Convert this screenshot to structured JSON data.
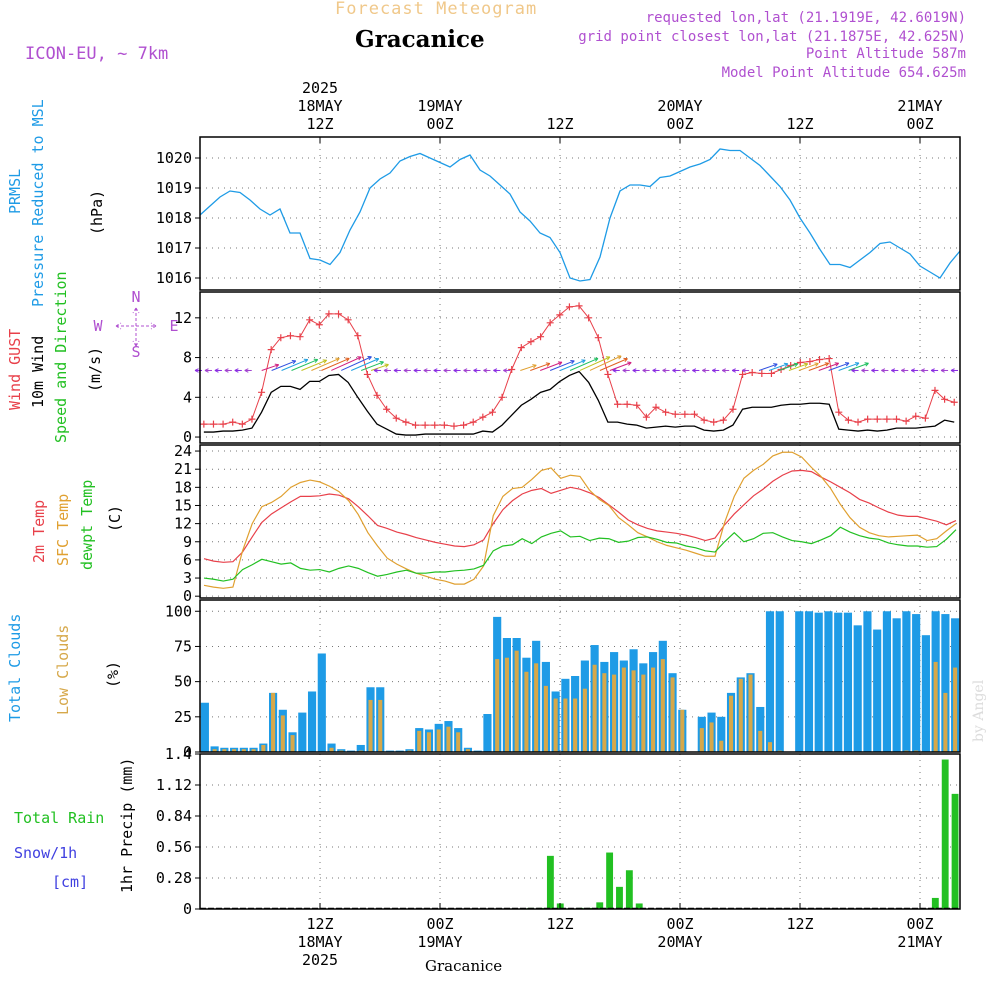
{
  "header": {
    "forecast_title": "Forecast Meteogram",
    "location": "Gracanice",
    "model": "ICON-EU, ~ 7km",
    "requested": "requested lon,lat (21.1919E, 42.6019N)",
    "gridpoint": "grid point closest lon,lat (21.1875E, 42.625N)",
    "point_alt": "Point Altitude 587m",
    "model_alt": "Model Point Altitude 654.625m",
    "footer_location": "Gracanice",
    "watermark": "by Angel"
  },
  "colors": {
    "pressure": "#1e9be6",
    "gust": "#e8404a",
    "wind": "#000000",
    "temp": "#e8404a",
    "sfc_temp": "#e0a030",
    "dewpt": "#22c022",
    "total_clouds": "#1e9be6",
    "low_clouds": "#d6a84a",
    "rain": "#22c022",
    "snow": "#4040e0",
    "header_purple": "#b050d0",
    "title_orange": "#f0c88a"
  },
  "chart_data": [
    {
      "type": "line",
      "title": "PRMSL Pressure Reduced to MSL",
      "ylabel": "(hPa)",
      "ylim": [
        1015.6,
        1020.7
      ],
      "yticks": [
        1016,
        1017,
        1018,
        1019,
        1020
      ],
      "x_hours_from_start": [
        0,
        1,
        2,
        3,
        4,
        5,
        6,
        7,
        8,
        9,
        10,
        11,
        12,
        13,
        14,
        15,
        16,
        17,
        18,
        19,
        20,
        21,
        22,
        23,
        24,
        25,
        26,
        27,
        28,
        29,
        30,
        31,
        32,
        33,
        34,
        35,
        36,
        37,
        38,
        39,
        40,
        41,
        42,
        43,
        44,
        45,
        46,
        47,
        48,
        49,
        50,
        51,
        52,
        53,
        54,
        55,
        56,
        57,
        58,
        59,
        60,
        61,
        62,
        63,
        64,
        65,
        66,
        67,
        68,
        69,
        70,
        71,
        72,
        73,
        74,
        75,
        76
      ],
      "series": [
        {
          "name": "PRMSL",
          "values": [
            1018.1,
            1018.4,
            1018.7,
            1018.9,
            1018.85,
            1018.6,
            1018.3,
            1018.1,
            1018.3,
            1017.5,
            1017.5,
            1016.65,
            1016.6,
            1016.45,
            1016.85,
            1017.6,
            1018.2,
            1019.0,
            1019.3,
            1019.5,
            1019.9,
            1020.05,
            1020.15,
            1020.0,
            1019.85,
            1019.7,
            1019.95,
            1020.1,
            1019.6,
            1019.4,
            1019.1,
            1018.8,
            1018.2,
            1017.9,
            1017.5,
            1017.35,
            1016.85,
            1016.0,
            1015.9,
            1015.95,
            1016.7,
            1018.0,
            1018.9,
            1019.1,
            1019.1,
            1019.05,
            1019.35,
            1019.4,
            1019.55,
            1019.7,
            1019.8,
            1019.95,
            1020.3,
            1020.25,
            1020.25,
            1020.0,
            1019.75,
            1019.4,
            1019.05,
            1018.6,
            1018.0,
            1017.5,
            1016.95,
            1016.45,
            1016.45,
            1016.35,
            1016.6,
            1016.85,
            1017.15,
            1017.2,
            1017.0,
            1016.8,
            1016.4,
            1016.2,
            1016.0,
            1016.5,
            1016.9
          ]
        }
      ]
    },
    {
      "type": "line",
      "title": "Wind GUST 10m Wind Speed and Direction",
      "ylabel": "(m/s)",
      "ylim": [
        -0.6,
        14.6
      ],
      "yticks": [
        0,
        4,
        8,
        12
      ],
      "compass": {
        "n": "N",
        "w": "W",
        "e": "E",
        "s": "S"
      },
      "series": [
        {
          "name": "Wind GUST",
          "values": [
            1.3,
            1.3,
            1.3,
            1.5,
            1.3,
            1.8,
            4.5,
            8.8,
            10,
            10.2,
            10.1,
            11.8,
            11.3,
            12.4,
            12.4,
            11.8,
            10.2,
            6.3,
            4.2,
            2.8,
            1.9,
            1.5,
            1.2,
            1.2,
            1.2,
            1.2,
            1.1,
            1.2,
            1.5,
            2.0,
            2.5,
            4.0,
            6.8,
            9.0,
            9.6,
            10.1,
            11.5,
            12.3,
            13.1,
            13.2,
            12.0,
            10.0,
            6.3,
            3.3,
            3.3,
            3.2,
            2.0,
            3.0,
            2.5,
            2.3,
            2.3,
            2.3,
            1.7,
            1.5,
            1.7,
            2.8,
            6.3,
            6.5,
            6.4,
            6.4,
            6.8,
            7.2,
            7.5,
            7.6,
            7.8,
            7.9,
            2.5,
            1.7,
            1.5,
            1.8,
            1.8,
            1.8,
            1.8,
            1.6,
            2.1,
            1.9,
            4.7,
            3.8,
            3.5
          ]
        },
        {
          "name": "10m Wind",
          "values": [
            0.5,
            0.5,
            0.6,
            0.6,
            0.7,
            0.9,
            2.5,
            4.5,
            5.1,
            5.1,
            4.8,
            5.6,
            5.6,
            6.2,
            6.3,
            5.5,
            4.0,
            2.6,
            1.3,
            0.8,
            0.3,
            0.2,
            0.2,
            0.3,
            0.3,
            0.3,
            0.3,
            0.3,
            0.3,
            0.6,
            0.5,
            1.2,
            2.2,
            3.2,
            3.8,
            4.5,
            4.8,
            5.6,
            6.2,
            6.6,
            5.5,
            3.7,
            1.5,
            1.5,
            1.3,
            1.2,
            0.9,
            1.0,
            1.1,
            1.0,
            1.1,
            1.1,
            0.7,
            0.6,
            0.7,
            1.2,
            2.8,
            3.0,
            3.0,
            3.0,
            3.2,
            3.3,
            3.3,
            3.4,
            3.4,
            3.3,
            0.8,
            0.7,
            0.6,
            0.7,
            0.6,
            0.7,
            0.9,
            0.9,
            0.9,
            1.0,
            1.1,
            1.7,
            1.5
          ]
        }
      ]
    },
    {
      "type": "line",
      "title": "2m Temp SFC Temp dewpt Temp",
      "ylabel": "(C)",
      "ylim": [
        -0.3,
        25
      ],
      "yticks": [
        0,
        3,
        6,
        9,
        12,
        15,
        18,
        21,
        24
      ],
      "series": [
        {
          "name": "2m Temp",
          "values": [
            6.2,
            5.8,
            5.6,
            5.7,
            7.3,
            9.8,
            12.2,
            13.6,
            14.6,
            15.6,
            16.5,
            16.5,
            16.6,
            16.9,
            16.7,
            16.1,
            14.8,
            13.3,
            11.7,
            11.2,
            10.6,
            10.2,
            9.7,
            9.3,
            8.9,
            8.6,
            8.3,
            8.2,
            8.5,
            9.3,
            12.0,
            14.3,
            15.8,
            16.9,
            17.5,
            17.8,
            17.0,
            17.5,
            18.0,
            17.7,
            17.1,
            16.3,
            15.1,
            13.9,
            12.6,
            11.8,
            11.2,
            10.8,
            10.6,
            10.4,
            10.1,
            9.7,
            9.2,
            9.6,
            11.8,
            13.6,
            15.1,
            16.6,
            17.7,
            19.0,
            20.0,
            20.7,
            20.8,
            20.6,
            19.7,
            18.9,
            18.0,
            17.1,
            16.0,
            15.4,
            14.6,
            13.9,
            13.4,
            13.2,
            13.2,
            12.8,
            12.4,
            11.8,
            12.5
          ]
        },
        {
          "name": "SFC Temp",
          "values": [
            1.8,
            1.5,
            1.3,
            1.5,
            7.5,
            12.0,
            14.8,
            15.5,
            16.5,
            18.0,
            18.8,
            19.2,
            18.9,
            18.2,
            17.3,
            15.8,
            13.5,
            10.5,
            8.3,
            6.3,
            5.3,
            4.5,
            3.8,
            3.3,
            2.8,
            2.5,
            2.0,
            2.0,
            2.8,
            5.0,
            13.3,
            16.5,
            17.8,
            18.0,
            19.3,
            20.8,
            21.2,
            19.5,
            20.0,
            19.8,
            17.5,
            16.0,
            15.0,
            13.0,
            11.8,
            10.5,
            9.8,
            9.0,
            8.4,
            8.0,
            7.6,
            7.1,
            6.6,
            6.6,
            12.2,
            16.5,
            19.5,
            20.8,
            21.8,
            23.2,
            23.8,
            23.8,
            23.0,
            21.3,
            19.8,
            17.8,
            15.2,
            13.0,
            11.4,
            10.5,
            10.0,
            9.8,
            9.9,
            10.0,
            10.1,
            9.2,
            9.5,
            10.8,
            12.0
          ]
        },
        {
          "name": "dewpt Temp",
          "values": [
            3.0,
            2.8,
            2.5,
            2.8,
            4.4,
            5.2,
            6.1,
            5.7,
            5.3,
            5.5,
            4.6,
            4.3,
            4.4,
            4.0,
            4.6,
            5.0,
            4.6,
            3.9,
            3.3,
            3.6,
            4.0,
            4.3,
            3.8,
            3.8,
            4.0,
            4.0,
            4.2,
            4.3,
            4.5,
            5.1,
            7.5,
            8.3,
            8.5,
            9.5,
            8.7,
            9.8,
            10.4,
            10.8,
            9.8,
            9.9,
            9.2,
            9.6,
            9.5,
            8.9,
            9.1,
            9.7,
            9.8,
            9.4,
            8.9,
            8.8,
            8.3,
            8.0,
            7.5,
            7.3,
            9.0,
            10.5,
            9.0,
            9.5,
            10.4,
            10.5,
            9.8,
            9.2,
            9.0,
            8.7,
            9.3,
            10.0,
            11.4,
            10.6,
            10.0,
            9.6,
            9.4,
            8.8,
            8.5,
            8.3,
            8.3,
            8.1,
            8.2,
            9.4,
            11.0
          ]
        }
      ]
    },
    {
      "type": "bar",
      "title": "Total Clouds Low Clouds",
      "ylabel": "(%)",
      "ylim": [
        0,
        108
      ],
      "yticks": [
        0,
        25,
        50,
        75,
        100
      ],
      "series": [
        {
          "name": "Total Clouds",
          "values": [
            35,
            4,
            3,
            3,
            3,
            3,
            6,
            42,
            30,
            14,
            28,
            43,
            70,
            6,
            2,
            1,
            5,
            46,
            46,
            1,
            1,
            2,
            17,
            16,
            20,
            22,
            17,
            3,
            1,
            27,
            96,
            81,
            81,
            67,
            79,
            64,
            43,
            52,
            54,
            65,
            76,
            64,
            71,
            65,
            73,
            63,
            71,
            79,
            56,
            30,
            0,
            25,
            28,
            25,
            42,
            53,
            56,
            32,
            100,
            100,
            0,
            100,
            100,
            99,
            100,
            99,
            99,
            90,
            100,
            87,
            100,
            95,
            100,
            98,
            83,
            100,
            98,
            95
          ]
        },
        {
          "name": "Low Clouds",
          "values": [
            0,
            2,
            2,
            2,
            2,
            2,
            5,
            42,
            26,
            12,
            0,
            0,
            0,
            3,
            1,
            0,
            1,
            37,
            37,
            0,
            0,
            1,
            15,
            14,
            16,
            18,
            14,
            2,
            0,
            0,
            66,
            67,
            72,
            57,
            63,
            47,
            38,
            38,
            38,
            45,
            62,
            56,
            55,
            60,
            58,
            55,
            60,
            66,
            53,
            30,
            0,
            17,
            21,
            8,
            40,
            52,
            55,
            15,
            7,
            1,
            0,
            0,
            0,
            0,
            0,
            0,
            0,
            0,
            0,
            0,
            0,
            0,
            1,
            1,
            0,
            64,
            42,
            60
          ]
        }
      ]
    },
    {
      "type": "bar",
      "title": "Total Rain Snow/1h [cm]",
      "ylabel": "1hr Precip (mm)",
      "ylim": [
        0,
        1.4
      ],
      "yticks": [
        0,
        0.28,
        0.56,
        0.84,
        1.12,
        1.4
      ],
      "ytick_labels": [
        "0",
        "0.28",
        "0.56",
        "0.84",
        "1.12",
        "1.4"
      ],
      "series": [
        {
          "name": "Total Rain",
          "values": [
            0,
            0,
            0,
            0,
            0,
            0,
            0,
            0,
            0,
            0,
            0,
            0,
            0,
            0,
            0,
            0,
            0,
            0,
            0,
            0,
            0,
            0,
            0,
            0,
            0,
            0,
            0,
            0,
            0,
            0,
            0,
            0,
            0,
            0.01,
            0.01,
            0.48,
            0.05,
            0,
            0.01,
            0.01,
            0.06,
            0.51,
            0.2,
            0.35,
            0.05,
            0,
            0,
            0,
            0,
            0,
            0,
            0,
            0,
            0,
            0,
            0,
            0,
            0,
            0,
            0,
            0,
            0,
            0,
            0,
            0,
            0,
            0,
            0,
            0,
            0,
            0,
            0,
            0,
            0,
            0.1,
            1.35,
            1.04
          ]
        }
      ]
    }
  ],
  "time_axis": {
    "top_labels": [
      {
        "lines": [
          "2025",
          "18MAY",
          "12Z"
        ],
        "hour": 12
      },
      {
        "lines": [
          "19MAY",
          "00Z"
        ],
        "hour": 24
      },
      {
        "lines": [
          "12Z"
        ],
        "hour": 36
      },
      {
        "lines": [
          "20MAY",
          "00Z"
        ],
        "hour": 48
      },
      {
        "lines": [
          "12Z"
        ],
        "hour": 60
      },
      {
        "lines": [
          "21MAY",
          "00Z"
        ],
        "hour": 72
      }
    ],
    "bottom_labels": [
      {
        "lines": [
          "12Z",
          "18MAY",
          "2025"
        ],
        "hour": 12
      },
      {
        "lines": [
          "00Z",
          "19MAY"
        ],
        "hour": 24
      },
      {
        "lines": [
          "12Z"
        ],
        "hour": 36
      },
      {
        "lines": [
          "00Z",
          "20MAY"
        ],
        "hour": 48
      },
      {
        "lines": [
          "12Z"
        ],
        "hour": 60
      },
      {
        "lines": [
          "00Z",
          "21MAY"
        ],
        "hour": 72
      }
    ]
  },
  "labels": {
    "p1_a": "PRMSL",
    "p1_b": "Pressure Reduced to MSL",
    "p1_unit": "(hPa)",
    "p2_a": "Wind GUST",
    "p2_b": "10m Wind",
    "p2_c": "Speed and Direction",
    "p2_unit": "(m/s)",
    "p3_a": "2m Temp",
    "p3_b": "SFC Temp",
    "p3_c": "dewpt Temp",
    "p3_unit": "(C)",
    "p4_a": "Total Clouds",
    "p4_b": "Low Clouds",
    "p4_unit": "(%)",
    "p5_rain": "Total  Rain",
    "p5_snow": "Snow/1h",
    "p5_cm": "[cm]",
    "p5_unit": "1hr Precip (mm)"
  }
}
